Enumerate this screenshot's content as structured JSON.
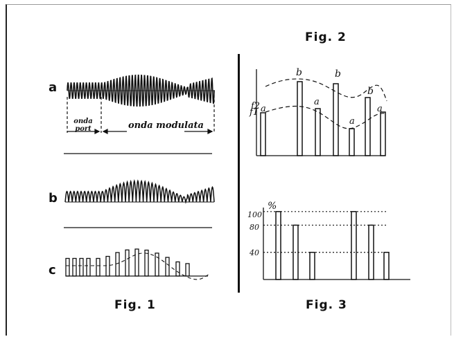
{
  "figures": {
    "fig1": {
      "caption": "Fig. 1",
      "rows": [
        {
          "label": "a"
        },
        {
          "label": "b"
        },
        {
          "label": "c"
        }
      ],
      "annotations": {
        "carrier": "onda port",
        "modulated": "onda modulata"
      }
    },
    "fig2": {
      "caption": "Fig. 2",
      "curve_labels": [
        "f2",
        "f1"
      ],
      "bar_labels": [
        "a",
        "b",
        "a",
        "b",
        "a",
        "b",
        "a"
      ]
    },
    "fig3": {
      "caption": "Fig. 3",
      "unit": "%",
      "ticks": [
        "100",
        "80",
        "40"
      ]
    }
  },
  "chart_data": {
    "type": "bar",
    "title": "Fig. 3",
    "ylabel": "%",
    "ylim": [
      0,
      110
    ],
    "yticks": [
      100,
      80,
      40
    ],
    "values": [
      100,
      80,
      40,
      100,
      80,
      40
    ]
  }
}
